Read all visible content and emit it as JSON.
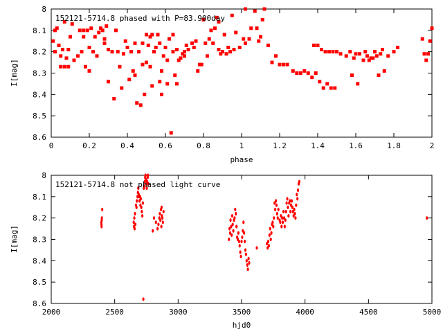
{
  "chart_data": [
    {
      "type": "scatter",
      "title": "152121-5714.8 phased with P=83.900day",
      "xlabel": "phase",
      "ylabel": "I[mag]",
      "xlim": [
        0,
        2
      ],
      "ylim": [
        8.6,
        8.0
      ],
      "y_inverted": true,
      "xticks": [
        "0",
        "0.2",
        "0.4",
        "0.6",
        "0.8",
        "1",
        "1.2",
        "1.4",
        "1.6",
        "1.8",
        "2"
      ],
      "xtick_values": [
        0,
        0.2,
        0.4,
        0.6,
        0.8,
        1.0,
        1.2,
        1.4,
        1.6,
        1.8,
        2.0
      ],
      "yticks": [
        "8",
        "8.1",
        "8.2",
        "8.3",
        "8.4",
        "8.5",
        "8.6"
      ],
      "ytick_values": [
        8.0,
        8.1,
        8.2,
        8.3,
        8.4,
        8.5,
        8.6
      ],
      "marker_color": "#ff0000",
      "points": [
        [
          0.01,
          8.15
        ],
        [
          0.02,
          8.2
        ],
        [
          0.02,
          8.1
        ],
        [
          0.03,
          8.09
        ],
        [
          0.04,
          8.17
        ],
        [
          0.05,
          8.27
        ],
        [
          0.05,
          8.22
        ],
        [
          0.06,
          8.19
        ],
        [
          0.07,
          8.27
        ],
        [
          0.07,
          8.06
        ],
        [
          0.08,
          8.23
        ],
        [
          0.09,
          8.19
        ],
        [
          0.09,
          8.27
        ],
        [
          0.1,
          8.13
        ],
        [
          0.11,
          8.07
        ],
        [
          0.12,
          8.24
        ],
        [
          0.14,
          8.22
        ],
        [
          0.15,
          8.1
        ],
        [
          0.16,
          8.2
        ],
        [
          0.17,
          8.13
        ],
        [
          0.17,
          8.1
        ],
        [
          0.18,
          8.27
        ],
        [
          0.19,
          8.1
        ],
        [
          0.2,
          8.29
        ],
        [
          0.2,
          8.18
        ],
        [
          0.21,
          8.09
        ],
        [
          0.22,
          8.2
        ],
        [
          0.23,
          8.13
        ],
        [
          0.24,
          8.22
        ],
        [
          0.25,
          8.11
        ],
        [
          0.26,
          8.09
        ],
        [
          0.27,
          8.1
        ],
        [
          0.28,
          8.14
        ],
        [
          0.28,
          8.16
        ],
        [
          0.29,
          8.08
        ],
        [
          0.3,
          8.34
        ],
        [
          0.3,
          8.19
        ],
        [
          0.32,
          8.2
        ],
        [
          0.33,
          8.42
        ],
        [
          0.34,
          8.1
        ],
        [
          0.35,
          8.2
        ],
        [
          0.36,
          8.27
        ],
        [
          0.37,
          8.37
        ],
        [
          0.38,
          8.21
        ],
        [
          0.39,
          8.15
        ],
        [
          0.4,
          8.18
        ],
        [
          0.41,
          8.33
        ],
        [
          0.42,
          8.2
        ],
        [
          0.43,
          8.29
        ],
        [
          0.44,
          8.31
        ],
        [
          0.44,
          8.16
        ],
        [
          0.45,
          8.44
        ],
        [
          0.46,
          8.2
        ],
        [
          0.47,
          8.45
        ],
        [
          0.48,
          8.26
        ],
        [
          0.48,
          8.16
        ],
        [
          0.49,
          8.4
        ],
        [
          0.5,
          8.12
        ],
        [
          0.5,
          8.25
        ],
        [
          0.51,
          8.17
        ],
        [
          0.52,
          8.27
        ],
        [
          0.52,
          8.13
        ],
        [
          0.53,
          8.36
        ],
        [
          0.53,
          8.12
        ],
        [
          0.54,
          8.2
        ],
        [
          0.55,
          8.18
        ],
        [
          0.56,
          8.12
        ],
        [
          0.57,
          8.34
        ],
        [
          0.57,
          8.16
        ],
        [
          0.58,
          8.4
        ],
        [
          0.58,
          8.29
        ],
        [
          0.59,
          8.22
        ],
        [
          0.6,
          8.18
        ],
        [
          0.61,
          8.35
        ],
        [
          0.61,
          8.24
        ],
        [
          0.62,
          8.14
        ],
        [
          0.63,
          8.58
        ],
        [
          0.64,
          8.12
        ],
        [
          0.64,
          8.2
        ],
        [
          0.65,
          8.31
        ],
        [
          0.66,
          8.19
        ],
        [
          0.66,
          8.35
        ],
        [
          0.67,
          8.24
        ],
        [
          0.68,
          8.23
        ],
        [
          0.69,
          8.21
        ],
        [
          0.7,
          8.2
        ],
        [
          0.7,
          8.22
        ],
        [
          0.71,
          8.17
        ],
        [
          0.72,
          8.19
        ],
        [
          0.74,
          8.16
        ],
        [
          0.75,
          8.18
        ],
        [
          0.76,
          8.15
        ],
        [
          0.77,
          8.29
        ],
        [
          0.78,
          8.26
        ],
        [
          0.79,
          8.26
        ],
        [
          0.8,
          8.05
        ],
        [
          0.81,
          8.16
        ],
        [
          0.82,
          8.22
        ],
        [
          0.83,
          8.14
        ],
        [
          0.84,
          8.1
        ],
        [
          0.85,
          8.16
        ],
        [
          0.86,
          8.09
        ],
        [
          0.87,
          8.04
        ],
        [
          0.88,
          8.19
        ],
        [
          0.88,
          8.06
        ],
        [
          0.89,
          8.21
        ],
        [
          0.9,
          8.2
        ],
        [
          0.91,
          8.12
        ],
        [
          0.92,
          8.21
        ],
        [
          0.93,
          8.18
        ],
        [
          0.94,
          8.2
        ],
        [
          0.95,
          8.03
        ],
        [
          0.96,
          8.19
        ],
        [
          0.97,
          8.11
        ],
        [
          0.99,
          8.18
        ],
        [
          1.01,
          8.14
        ],
        [
          1.02,
          8.16
        ],
        [
          1.02,
          8.0
        ],
        [
          1.04,
          8.14
        ],
        [
          1.05,
          8.09
        ],
        [
          1.07,
          8.01
        ],
        [
          1.08,
          8.09
        ],
        [
          1.09,
          8.15
        ],
        [
          1.1,
          8.13
        ],
        [
          1.11,
          8.05
        ],
        [
          1.12,
          8.0
        ],
        [
          1.14,
          8.17
        ],
        [
          1.16,
          8.25
        ],
        [
          1.18,
          8.22
        ],
        [
          1.2,
          8.26
        ],
        [
          1.22,
          8.26
        ],
        [
          1.24,
          8.26
        ],
        [
          1.27,
          8.29
        ],
        [
          1.29,
          8.3
        ],
        [
          1.31,
          8.3
        ],
        [
          1.33,
          8.29
        ],
        [
          1.35,
          8.3
        ],
        [
          1.37,
          8.32
        ],
        [
          1.38,
          8.17
        ],
        [
          1.39,
          8.3
        ],
        [
          1.4,
          8.17
        ],
        [
          1.41,
          8.34
        ],
        [
          1.42,
          8.19
        ],
        [
          1.43,
          8.37
        ],
        [
          1.44,
          8.2
        ],
        [
          1.45,
          8.35
        ],
        [
          1.46,
          8.2
        ],
        [
          1.47,
          8.37
        ],
        [
          1.48,
          8.2
        ],
        [
          1.49,
          8.37
        ],
        [
          1.5,
          8.2
        ],
        [
          1.52,
          8.21
        ],
        [
          1.55,
          8.22
        ],
        [
          1.57,
          8.2
        ],
        [
          1.58,
          8.31
        ],
        [
          1.59,
          8.23
        ],
        [
          1.6,
          8.21
        ],
        [
          1.61,
          8.35
        ],
        [
          1.62,
          8.21
        ],
        [
          1.64,
          8.24
        ],
        [
          1.65,
          8.2
        ],
        [
          1.66,
          8.22
        ],
        [
          1.67,
          8.24
        ],
        [
          1.68,
          8.23
        ],
        [
          1.69,
          8.23
        ],
        [
          1.7,
          8.2
        ],
        [
          1.71,
          8.22
        ],
        [
          1.72,
          8.31
        ],
        [
          1.73,
          8.21
        ],
        [
          1.74,
          8.19
        ],
        [
          1.75,
          8.29
        ],
        [
          1.77,
          8.22
        ],
        [
          1.8,
          8.2
        ],
        [
          1.82,
          8.18
        ],
        [
          1.95,
          8.14
        ],
        [
          1.96,
          8.21
        ],
        [
          1.97,
          8.24
        ],
        [
          1.98,
          8.21
        ],
        [
          1.99,
          8.15
        ],
        [
          2.0,
          8.09
        ],
        [
          2.01,
          8.1
        ],
        [
          2.01,
          8.27
        ]
      ]
    },
    {
      "type": "scatter",
      "title": "152121-5714.8 not phased light curve",
      "xlabel": "hjd0",
      "ylabel": "I[mag]",
      "xlim": [
        2000,
        5000
      ],
      "ylim": [
        8.6,
        8.0
      ],
      "y_inverted": true,
      "xticks": [
        "2000",
        "2500",
        "3000",
        "3500",
        "4000",
        "4500",
        "5000"
      ],
      "xtick_values": [
        2000,
        2500,
        3000,
        3500,
        4000,
        4500,
        5000
      ],
      "yticks": [
        "8",
        "8.1",
        "8.2",
        "8.3",
        "8.4",
        "8.5",
        "8.6"
      ],
      "ytick_values": [
        8.0,
        8.1,
        8.2,
        8.3,
        8.4,
        8.5,
        8.6
      ],
      "marker_color": "#ff0000",
      "points": [
        [
          2395,
          8.22
        ],
        [
          2396,
          8.23
        ],
        [
          2397,
          8.24
        ],
        [
          2398,
          8.21
        ],
        [
          2399,
          8.2
        ],
        [
          2402,
          8.16
        ],
        [
          2650,
          8.22
        ],
        [
          2652,
          8.24
        ],
        [
          2655,
          8.2
        ],
        [
          2657,
          8.25
        ],
        [
          2660,
          8.18
        ],
        [
          2663,
          8.23
        ],
        [
          2668,
          8.14
        ],
        [
          2672,
          8.15
        ],
        [
          2675,
          8.12
        ],
        [
          2680,
          8.1
        ],
        [
          2683,
          8.08
        ],
        [
          2686,
          8.06
        ],
        [
          2690,
          8.09
        ],
        [
          2693,
          8.1
        ],
        [
          2696,
          8.12
        ],
        [
          2700,
          8.1
        ],
        [
          2703,
          8.14
        ],
        [
          2706,
          8.11
        ],
        [
          2710,
          8.15
        ],
        [
          2714,
          8.17
        ],
        [
          2718,
          8.19
        ],
        [
          2722,
          8.13
        ],
        [
          2726,
          8.58
        ],
        [
          2730,
          8.06
        ],
        [
          2733,
          8.05
        ],
        [
          2737,
          8.03
        ],
        [
          2740,
          8.01
        ],
        [
          2743,
          8.0
        ],
        [
          2746,
          8.02
        ],
        [
          2750,
          8.04
        ],
        [
          2753,
          8.06
        ],
        [
          2756,
          8.03
        ],
        [
          2760,
          8.01
        ],
        [
          2762,
          8.0
        ],
        [
          2765,
          8.04
        ],
        [
          2800,
          8.26
        ],
        [
          2810,
          8.2
        ],
        [
          2825,
          8.22
        ],
        [
          2838,
          8.25
        ],
        [
          2845,
          8.23
        ],
        [
          2852,
          8.2
        ],
        [
          2856,
          8.18
        ],
        [
          2860,
          8.21
        ],
        [
          2865,
          8.16
        ],
        [
          2868,
          8.24
        ],
        [
          2870,
          8.15
        ],
        [
          2872,
          8.19
        ],
        [
          2876,
          8.2
        ],
        [
          2880,
          8.22
        ],
        [
          2885,
          8.17
        ],
        [
          3400,
          8.3
        ],
        [
          3405,
          8.25
        ],
        [
          3410,
          8.27
        ],
        [
          3413,
          8.21
        ],
        [
          3418,
          8.24
        ],
        [
          3422,
          8.28
        ],
        [
          3426,
          8.19
        ],
        [
          3430,
          8.23
        ],
        [
          3435,
          8.26
        ],
        [
          3440,
          8.21
        ],
        [
          3445,
          8.2
        ],
        [
          3450,
          8.16
        ],
        [
          3455,
          8.18
        ],
        [
          3460,
          8.24
        ],
        [
          3465,
          8.29
        ],
        [
          3470,
          8.3
        ],
        [
          3475,
          8.27
        ],
        [
          3480,
          8.31
        ],
        [
          3485,
          8.33
        ],
        [
          3490,
          8.36
        ],
        [
          3495,
          8.38
        ],
        [
          3500,
          8.31
        ],
        [
          3505,
          8.29
        ],
        [
          3510,
          8.26
        ],
        [
          3515,
          8.22
        ],
        [
          3520,
          8.27
        ],
        [
          3525,
          8.31
        ],
        [
          3530,
          8.35
        ],
        [
          3535,
          8.37
        ],
        [
          3540,
          8.4
        ],
        [
          3545,
          8.42
        ],
        [
          3550,
          8.44
        ],
        [
          3555,
          8.39
        ],
        [
          3560,
          8.41
        ],
        [
          3620,
          8.34
        ],
        [
          3700,
          8.32
        ],
        [
          3705,
          8.34
        ],
        [
          3710,
          8.31
        ],
        [
          3715,
          8.33
        ],
        [
          3720,
          8.28
        ],
        [
          3725,
          8.25
        ],
        [
          3730,
          8.3
        ],
        [
          3735,
          8.27
        ],
        [
          3740,
          8.23
        ],
        [
          3745,
          8.22
        ],
        [
          3750,
          8.24
        ],
        [
          3755,
          8.2
        ],
        [
          3760,
          8.13
        ],
        [
          3765,
          8.16
        ],
        [
          3770,
          8.12
        ],
        [
          3775,
          8.14
        ],
        [
          3780,
          8.18
        ],
        [
          3785,
          8.2
        ],
        [
          3790,
          8.16
        ],
        [
          3800,
          8.21
        ],
        [
          3805,
          8.22
        ],
        [
          3810,
          8.19
        ],
        [
          3815,
          8.24
        ],
        [
          3820,
          8.2
        ],
        [
          3825,
          8.22
        ],
        [
          3830,
          8.17
        ],
        [
          3835,
          8.2
        ],
        [
          3840,
          8.24
        ],
        [
          3845,
          8.21
        ],
        [
          3850,
          8.17
        ],
        [
          3855,
          8.13
        ],
        [
          3860,
          8.11
        ],
        [
          3865,
          8.15
        ],
        [
          3870,
          8.19
        ],
        [
          3875,
          8.13
        ],
        [
          3880,
          8.12
        ],
        [
          3885,
          8.17
        ],
        [
          3890,
          8.14
        ],
        [
          3895,
          8.12
        ],
        [
          3900,
          8.15
        ],
        [
          3905,
          8.17
        ],
        [
          3910,
          8.19
        ],
        [
          3915,
          8.16
        ],
        [
          3920,
          8.18
        ],
        [
          3925,
          8.2
        ],
        [
          3930,
          8.14
        ],
        [
          3935,
          8.09
        ],
        [
          3940,
          8.11
        ],
        [
          3945,
          8.07
        ],
        [
          3950,
          8.04
        ],
        [
          3955,
          8.03
        ],
        [
          4960,
          8.2
        ]
      ]
    }
  ]
}
